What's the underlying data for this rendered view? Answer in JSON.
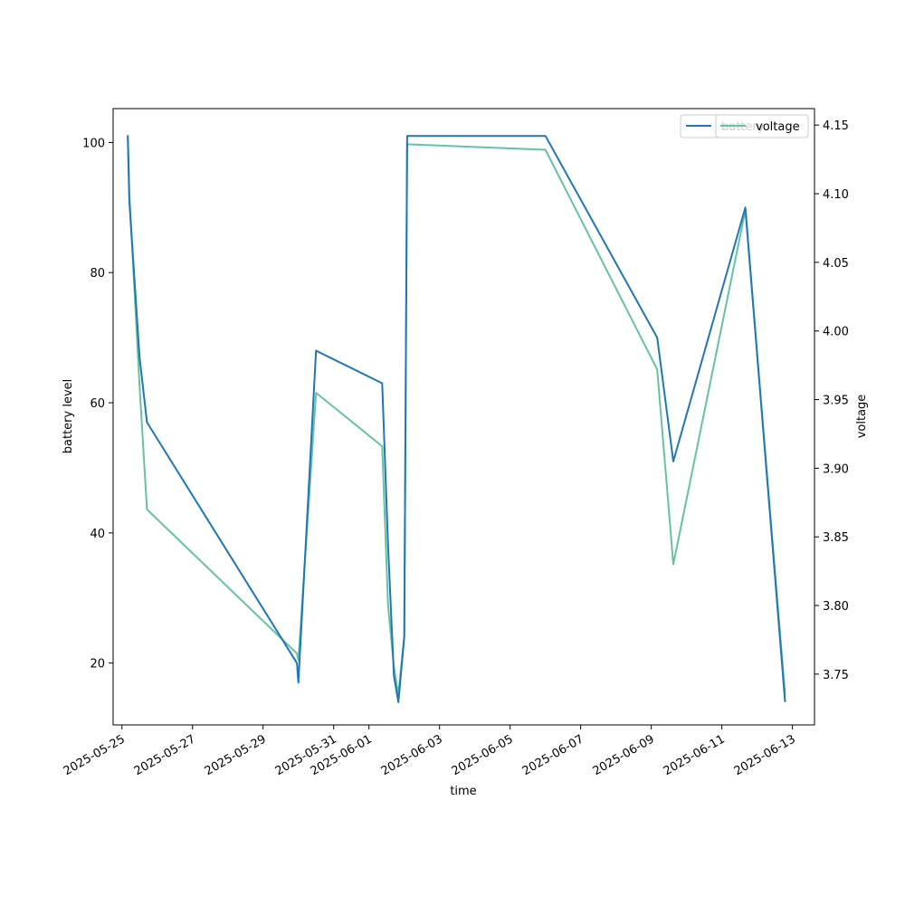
{
  "chart_data": {
    "type": "line",
    "title": "",
    "xlabel": "time",
    "ylabel_left": "battery level",
    "ylabel_right": "voltage",
    "x_type": "date",
    "xlim": [
      "2025-05-24T18:00",
      "2025-06-13T15:00"
    ],
    "ylim_left": [
      10.5,
      105.2
    ],
    "ylim_right": [
      3.713,
      4.162
    ],
    "x_ticks": [
      "2025-05-25",
      "2025-05-27",
      "2025-05-29",
      "2025-05-31",
      "2025-06-01",
      "2025-06-03",
      "2025-06-05",
      "2025-06-07",
      "2025-06-09",
      "2025-06-11",
      "2025-06-13"
    ],
    "y_ticks_left": [
      20,
      40,
      60,
      80,
      100
    ],
    "y_ticks_right": [
      3.75,
      3.8,
      3.85,
      3.9,
      3.95,
      4.0,
      4.05,
      4.1,
      4.15
    ],
    "y_tick_format_right": 2,
    "legend": {
      "placement": "top-right",
      "overlapping": true
    },
    "colors": {
      "battery": "#1f77b4",
      "voltage": "#66c2a5"
    },
    "series": [
      {
        "name": "battery",
        "axis": "left",
        "color": "#1f77b4",
        "x": [
          "2025-05-25T04:00",
          "2025-05-25T05:00",
          "2025-05-25T12:00",
          "2025-05-25T17:00",
          "2025-05-29T23:00",
          "2025-05-30T00:00",
          "2025-05-30T12:00",
          "2025-06-01T09:00",
          "2025-06-01T13:00",
          "2025-06-01T17:00",
          "2025-06-01T20:00",
          "2025-06-02T00:00",
          "2025-06-02T02:00",
          "2025-06-06T00:00",
          "2025-06-09T04:00",
          "2025-06-09T15:00",
          "2025-06-11T16:00",
          "2025-06-12T19:00"
        ],
        "values": [
          101,
          91,
          67,
          57,
          20,
          17,
          68,
          63,
          38,
          18,
          14,
          24,
          101,
          101,
          70,
          51,
          90,
          14
        ]
      },
      {
        "name": "voltage",
        "axis": "right",
        "color": "#66c2a5",
        "x": [
          "2025-05-25T04:00",
          "2025-05-25T05:00",
          "2025-05-25T12:00",
          "2025-05-25T17:00",
          "2025-05-29T23:00",
          "2025-05-30T00:00",
          "2025-05-30T12:00",
          "2025-06-01T09:00",
          "2025-06-01T13:00",
          "2025-06-01T17:00",
          "2025-06-01T20:00",
          "2025-06-02T00:00",
          "2025-06-02T02:00",
          "2025-06-06T00:00",
          "2025-06-09T04:00",
          "2025-06-09T15:00",
          "2025-06-11T16:00",
          "2025-06-12T19:00"
        ],
        "values": [
          4.143,
          4.1,
          3.96,
          3.87,
          3.765,
          3.76,
          3.955,
          3.916,
          3.8,
          3.755,
          3.735,
          3.778,
          4.136,
          4.132,
          3.972,
          3.83,
          4.088,
          3.735
        ]
      }
    ]
  }
}
